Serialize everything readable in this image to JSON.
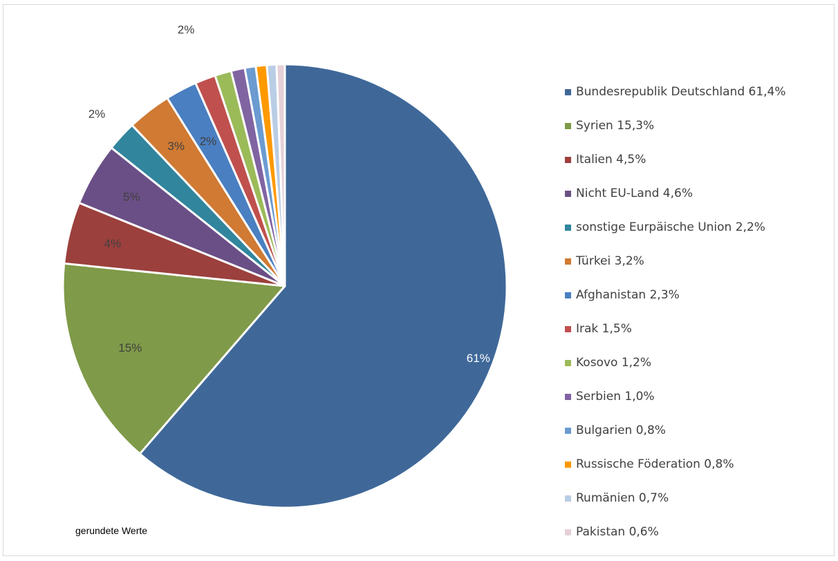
{
  "chart_data": {
    "type": "pie",
    "note": "gerundete Werte",
    "slices": [
      {
        "name": "Bundesrepublik Deutschland",
        "value": 61.4,
        "legend": "Bundesrepublik Deutschland 61,4%",
        "label": "61%",
        "color": "#3f6899"
      },
      {
        "name": "Syrien",
        "value": 15.3,
        "legend": "Syrien 15,3%",
        "label": "15%",
        "color": "#7f9a48"
      },
      {
        "name": "Italien",
        "value": 4.5,
        "legend": "Italien 4,5%",
        "label": "4%",
        "color": "#9b403d"
      },
      {
        "name": "Nicht EU-Land",
        "value": 4.6,
        "legend": "Nicht EU-Land 4,6%",
        "label": "5%",
        "color": "#6a4f86"
      },
      {
        "name": "sonstige Eurpäische Union",
        "value": 2.2,
        "legend": "sonstige Eurpäische Union 2,2%",
        "label": "2%",
        "color": "#31859c"
      },
      {
        "name": "Türkei",
        "value": 3.2,
        "legend": "Türkei 3,2%",
        "label": "3%",
        "color": "#d07a33"
      },
      {
        "name": "Afghanistan",
        "value": 2.3,
        "legend": "Afghanistan 2,3%",
        "label": "2%",
        "color": "#4a7fc1"
      },
      {
        "name": "Irak",
        "value": 1.5,
        "legend": "Irak 1,5%",
        "label": "2%",
        "color": "#c0504d"
      },
      {
        "name": "Kosovo",
        "value": 1.2,
        "legend": "Kosovo 1,2%",
        "label": "",
        "color": "#9bbb59"
      },
      {
        "name": "Serbien",
        "value": 1.0,
        "legend": "Serbien 1,0%",
        "label": "",
        "color": "#8064a2"
      },
      {
        "name": "Bulgarien",
        "value": 0.8,
        "legend": "Bulgarien 0,8%",
        "label": "",
        "color": "#6b9bd1"
      },
      {
        "name": "Russische Föderation",
        "value": 0.8,
        "legend": "Russische Föderation 0,8%",
        "label": "",
        "color": "#ff9900"
      },
      {
        "name": "Rumänien",
        "value": 0.7,
        "legend": "Rumänien 0,7%",
        "label": "",
        "color": "#b9cde5"
      },
      {
        "name": "Pakistan",
        "value": 0.6,
        "legend": "Pakistan 0,6%",
        "label": "",
        "color": "#e6d0d8"
      }
    ]
  }
}
